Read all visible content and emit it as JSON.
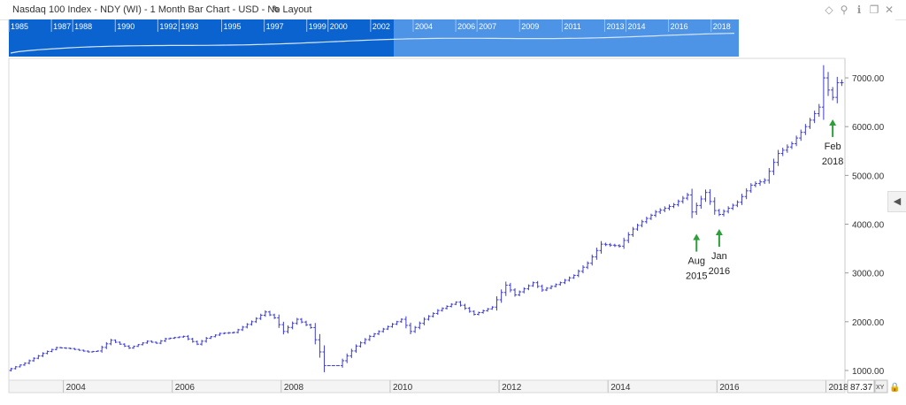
{
  "window": {
    "title": "Nasdaq 100 Index - NDY (WI) - 1 Month Bar Chart - USD - No Layout",
    "edit_icon": "pencil-icon",
    "controls": [
      "diamond-icon",
      "pin-icon",
      "info-icon",
      "restore-icon",
      "close-icon"
    ]
  },
  "navigator": {
    "year_labels": [
      "1985",
      "1987",
      "1988",
      "1990",
      "1992",
      "1993",
      "1995",
      "1997",
      "1999",
      "2000",
      "2002",
      "2004",
      "2006",
      "2007",
      "2009",
      "2011",
      "2013",
      "2014",
      "2016",
      "2018"
    ],
    "colors": {
      "band": "#0a63cf",
      "selected": "#4d93e6",
      "line": "#d7e6fb"
    }
  },
  "price_readout": "87.37",
  "axis_button": "XY",
  "lock_icon": "lock-icon",
  "side_tab_icon": "chevron-left-icon",
  "chart_data": {
    "type": "bar",
    "subtype": "ohlc-monthly",
    "title": "",
    "xlabel": "",
    "ylabel": "",
    "x_tick_labels": [
      "2004",
      "2006",
      "2008",
      "2010",
      "2012",
      "2014",
      "2016",
      "2018"
    ],
    "y_tick_labels": [
      "1000.00",
      "2000.00",
      "3000.00",
      "4000.00",
      "5000.00",
      "6000.00",
      "7000.00"
    ],
    "xlim": [
      "2003-01",
      "2018-04"
    ],
    "ylim": [
      800,
      7400
    ],
    "grid": false,
    "series_color": "#3c3cd0",
    "monthly_close": [
      [
        2003,
        1,
        1000
      ],
      [
        2003,
        5,
        1150
      ],
      [
        2003,
        9,
        1350
      ],
      [
        2003,
        12,
        1470
      ],
      [
        2004,
        3,
        1450
      ],
      [
        2004,
        7,
        1380
      ],
      [
        2004,
        9,
        1400
      ],
      [
        2004,
        12,
        1620
      ],
      [
        2005,
        4,
        1460
      ],
      [
        2005,
        8,
        1600
      ],
      [
        2005,
        10,
        1560
      ],
      [
        2005,
        12,
        1650
      ],
      [
        2006,
        4,
        1700
      ],
      [
        2006,
        7,
        1540
      ],
      [
        2006,
        9,
        1660
      ],
      [
        2006,
        12,
        1760
      ],
      [
        2007,
        3,
        1780
      ],
      [
        2007,
        7,
        2000
      ],
      [
        2007,
        10,
        2200
      ],
      [
        2007,
        12,
        2080
      ],
      [
        2008,
        2,
        1800
      ],
      [
        2008,
        5,
        2050
      ],
      [
        2008,
        8,
        1880
      ],
      [
        2008,
        10,
        1380
      ],
      [
        2008,
        11,
        1100
      ],
      [
        2009,
        2,
        1100
      ],
      [
        2009,
        6,
        1500
      ],
      [
        2009,
        9,
        1700
      ],
      [
        2009,
        12,
        1850
      ],
      [
        2010,
        4,
        2050
      ],
      [
        2010,
        6,
        1800
      ],
      [
        2010,
        9,
        2050
      ],
      [
        2010,
        12,
        2230
      ],
      [
        2011,
        4,
        2400
      ],
      [
        2011,
        8,
        2150
      ],
      [
        2011,
        12,
        2300
      ],
      [
        2012,
        3,
        2750
      ],
      [
        2012,
        5,
        2550
      ],
      [
        2012,
        9,
        2800
      ],
      [
        2012,
        11,
        2650
      ],
      [
        2013,
        3,
        2800
      ],
      [
        2013,
        6,
        2950
      ],
      [
        2013,
        9,
        3200
      ],
      [
        2013,
        12,
        3590
      ],
      [
        2014,
        4,
        3550
      ],
      [
        2014,
        7,
        3900
      ],
      [
        2014,
        9,
        4050
      ],
      [
        2014,
        12,
        4250
      ],
      [
        2015,
        4,
        4400
      ],
      [
        2015,
        7,
        4600
      ],
      [
        2015,
        8,
        4250
      ],
      [
        2015,
        11,
        4650
      ],
      [
        2016,
        1,
        4280
      ],
      [
        2016,
        2,
        4200
      ],
      [
        2016,
        6,
        4450
      ],
      [
        2016,
        9,
        4800
      ],
      [
        2016,
        12,
        4900
      ],
      [
        2017,
        3,
        5450
      ],
      [
        2017,
        6,
        5650
      ],
      [
        2017,
        9,
        6000
      ],
      [
        2017,
        12,
        6400
      ],
      [
        2018,
        1,
        7000
      ],
      [
        2018,
        2,
        6750
      ],
      [
        2018,
        3,
        6600
      ],
      [
        2018,
        4,
        6900
      ]
    ],
    "annotations": [
      {
        "label_line1": "Aug",
        "label_line2": "2015",
        "date": [
          2015,
          8
        ],
        "value": 3800,
        "arrow": "up",
        "color": "#2e9e3a"
      },
      {
        "label_line1": "Jan",
        "label_line2": "2016",
        "date": [
          2016,
          1
        ],
        "value": 3900,
        "arrow": "up",
        "color": "#2e9e3a"
      },
      {
        "label_line1": "Feb",
        "label_line2": "2018",
        "date": [
          2018,
          2
        ],
        "value": 6150,
        "arrow": "up",
        "color": "#2e9e3a"
      }
    ]
  }
}
